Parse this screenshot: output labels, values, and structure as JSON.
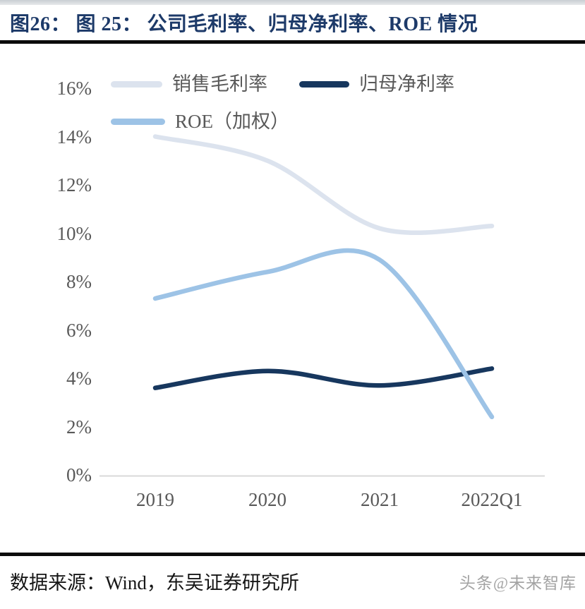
{
  "header": {
    "title": "图26： 图 25： 公司毛利率、归母净利率、ROE 情况"
  },
  "chart_data": {
    "type": "line",
    "title": "公司毛利率、归母净利率、ROE 情况",
    "categories": [
      "2019",
      "2020",
      "2021",
      "2022Q1"
    ],
    "series": [
      {
        "name": "销售毛利率",
        "color": "#dce3ee",
        "values": [
          14.0,
          13.0,
          10.2,
          10.3
        ]
      },
      {
        "name": "归母净利率",
        "color": "#17375e",
        "values": [
          3.6,
          4.3,
          3.7,
          4.4
        ]
      },
      {
        "name": "ROE（加权）",
        "color": "#9dc3e6",
        "values": [
          7.3,
          8.4,
          8.9,
          2.4
        ]
      }
    ],
    "xlabel": "",
    "ylabel": "",
    "ylim": [
      0,
      16
    ],
    "yticks": [
      "0%",
      "2%",
      "4%",
      "6%",
      "8%",
      "10%",
      "12%",
      "14%",
      "16%"
    ],
    "grid": false,
    "smooth": true,
    "legend_position": "top-left"
  },
  "footer": {
    "source": "数据来源：Wind，东吴证券研究所",
    "watermark": "头条@未来智库"
  },
  "colors": {
    "title": "#1d3a69",
    "axis_line": "#d8d8d8",
    "tick_text": "#595959",
    "divider": "#0b0b0b"
  }
}
